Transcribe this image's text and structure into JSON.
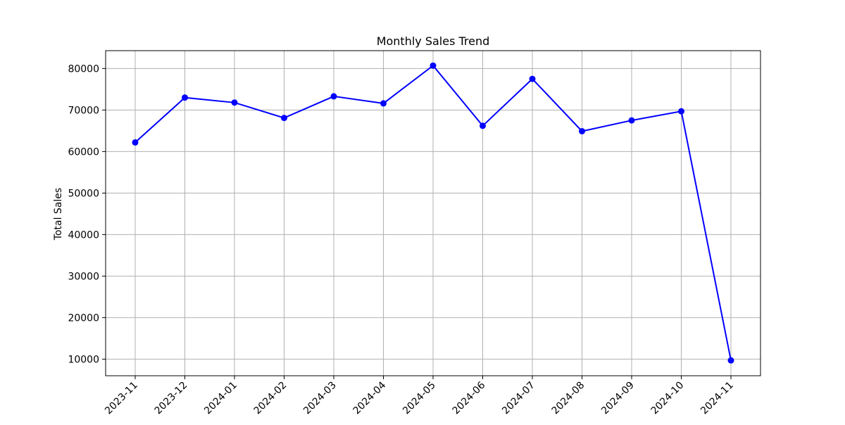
{
  "chart_data": {
    "type": "line",
    "title": "Monthly Sales Trend",
    "xlabel": "",
    "ylabel": "Total Sales",
    "categories": [
      "2023-11",
      "2023-12",
      "2024-01",
      "2024-02",
      "2024-03",
      "2024-04",
      "2024-05",
      "2024-06",
      "2024-07",
      "2024-08",
      "2024-09",
      "2024-10",
      "2024-11"
    ],
    "series": [
      {
        "values": [
          62200,
          73000,
          71800,
          68100,
          73300,
          71600,
          80700,
          66200,
          77500,
          64900,
          67500,
          69700,
          9700
        ],
        "color": "#0000ff",
        "marker": "circle"
      }
    ],
    "ylim": [
      6000,
      84300
    ],
    "yticks": [
      10000,
      20000,
      30000,
      40000,
      50000,
      60000,
      70000,
      80000
    ],
    "grid": true,
    "legend": "none",
    "x_tick_rotation": "45 degrees"
  }
}
